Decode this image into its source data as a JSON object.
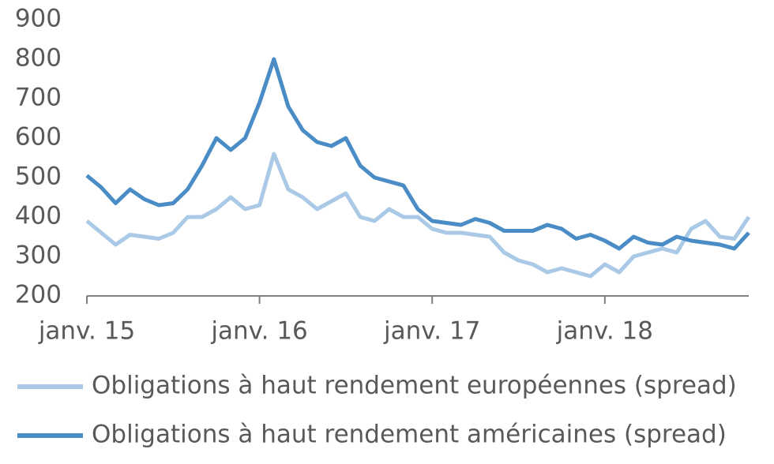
{
  "chart_data": {
    "type": "line",
    "x": [
      "2015-01",
      "2015-02",
      "2015-03",
      "2015-04",
      "2015-05",
      "2015-06",
      "2015-07",
      "2015-08",
      "2015-09",
      "2015-10",
      "2015-11",
      "2015-12",
      "2016-01",
      "2016-02",
      "2016-03",
      "2016-04",
      "2016-05",
      "2016-06",
      "2016-07",
      "2016-08",
      "2016-09",
      "2016-10",
      "2016-11",
      "2016-12",
      "2017-01",
      "2017-02",
      "2017-03",
      "2017-04",
      "2017-05",
      "2017-06",
      "2017-07",
      "2017-08",
      "2017-09",
      "2017-10",
      "2017-11",
      "2017-12",
      "2018-01",
      "2018-02",
      "2018-03",
      "2018-04",
      "2018-05",
      "2018-06",
      "2018-07",
      "2018-08",
      "2018-09",
      "2018-10",
      "2018-11"
    ],
    "series": [
      {
        "name": "Obligations à haut rendement européennes (spread)",
        "color": "#a9c9e6",
        "values": [
          390,
          360,
          330,
          355,
          350,
          345,
          360,
          400,
          400,
          420,
          450,
          420,
          430,
          560,
          470,
          450,
          420,
          440,
          460,
          400,
          390,
          420,
          400,
          400,
          370,
          360,
          360,
          355,
          350,
          310,
          290,
          280,
          260,
          270,
          260,
          250,
          280,
          260,
          300,
          310,
          320,
          310,
          370,
          390,
          350,
          345,
          400
        ]
      },
      {
        "name": "Obligations à haut rendement américaines (spread)",
        "color": "#4a8cc6",
        "values": [
          505,
          475,
          435,
          470,
          445,
          430,
          435,
          470,
          530,
          600,
          570,
          600,
          690,
          800,
          680,
          620,
          590,
          580,
          600,
          530,
          500,
          490,
          480,
          420,
          390,
          385,
          380,
          395,
          385,
          365,
          365,
          365,
          380,
          370,
          345,
          355,
          340,
          320,
          350,
          335,
          330,
          350,
          340,
          335,
          330,
          320,
          360
        ]
      }
    ],
    "xlim": [
      "2015-01",
      "2018-11"
    ],
    "xticks": [
      {
        "value": "2015-01",
        "label": "janv. 15"
      },
      {
        "value": "2016-01",
        "label": "janv. 16"
      },
      {
        "value": "2017-01",
        "label": "janv. 17"
      },
      {
        "value": "2018-01",
        "label": "janv. 18"
      }
    ],
    "ylim": [
      200,
      900
    ],
    "yticks": [
      200,
      300,
      400,
      500,
      600,
      700,
      800,
      900
    ],
    "legend": "bottom"
  }
}
